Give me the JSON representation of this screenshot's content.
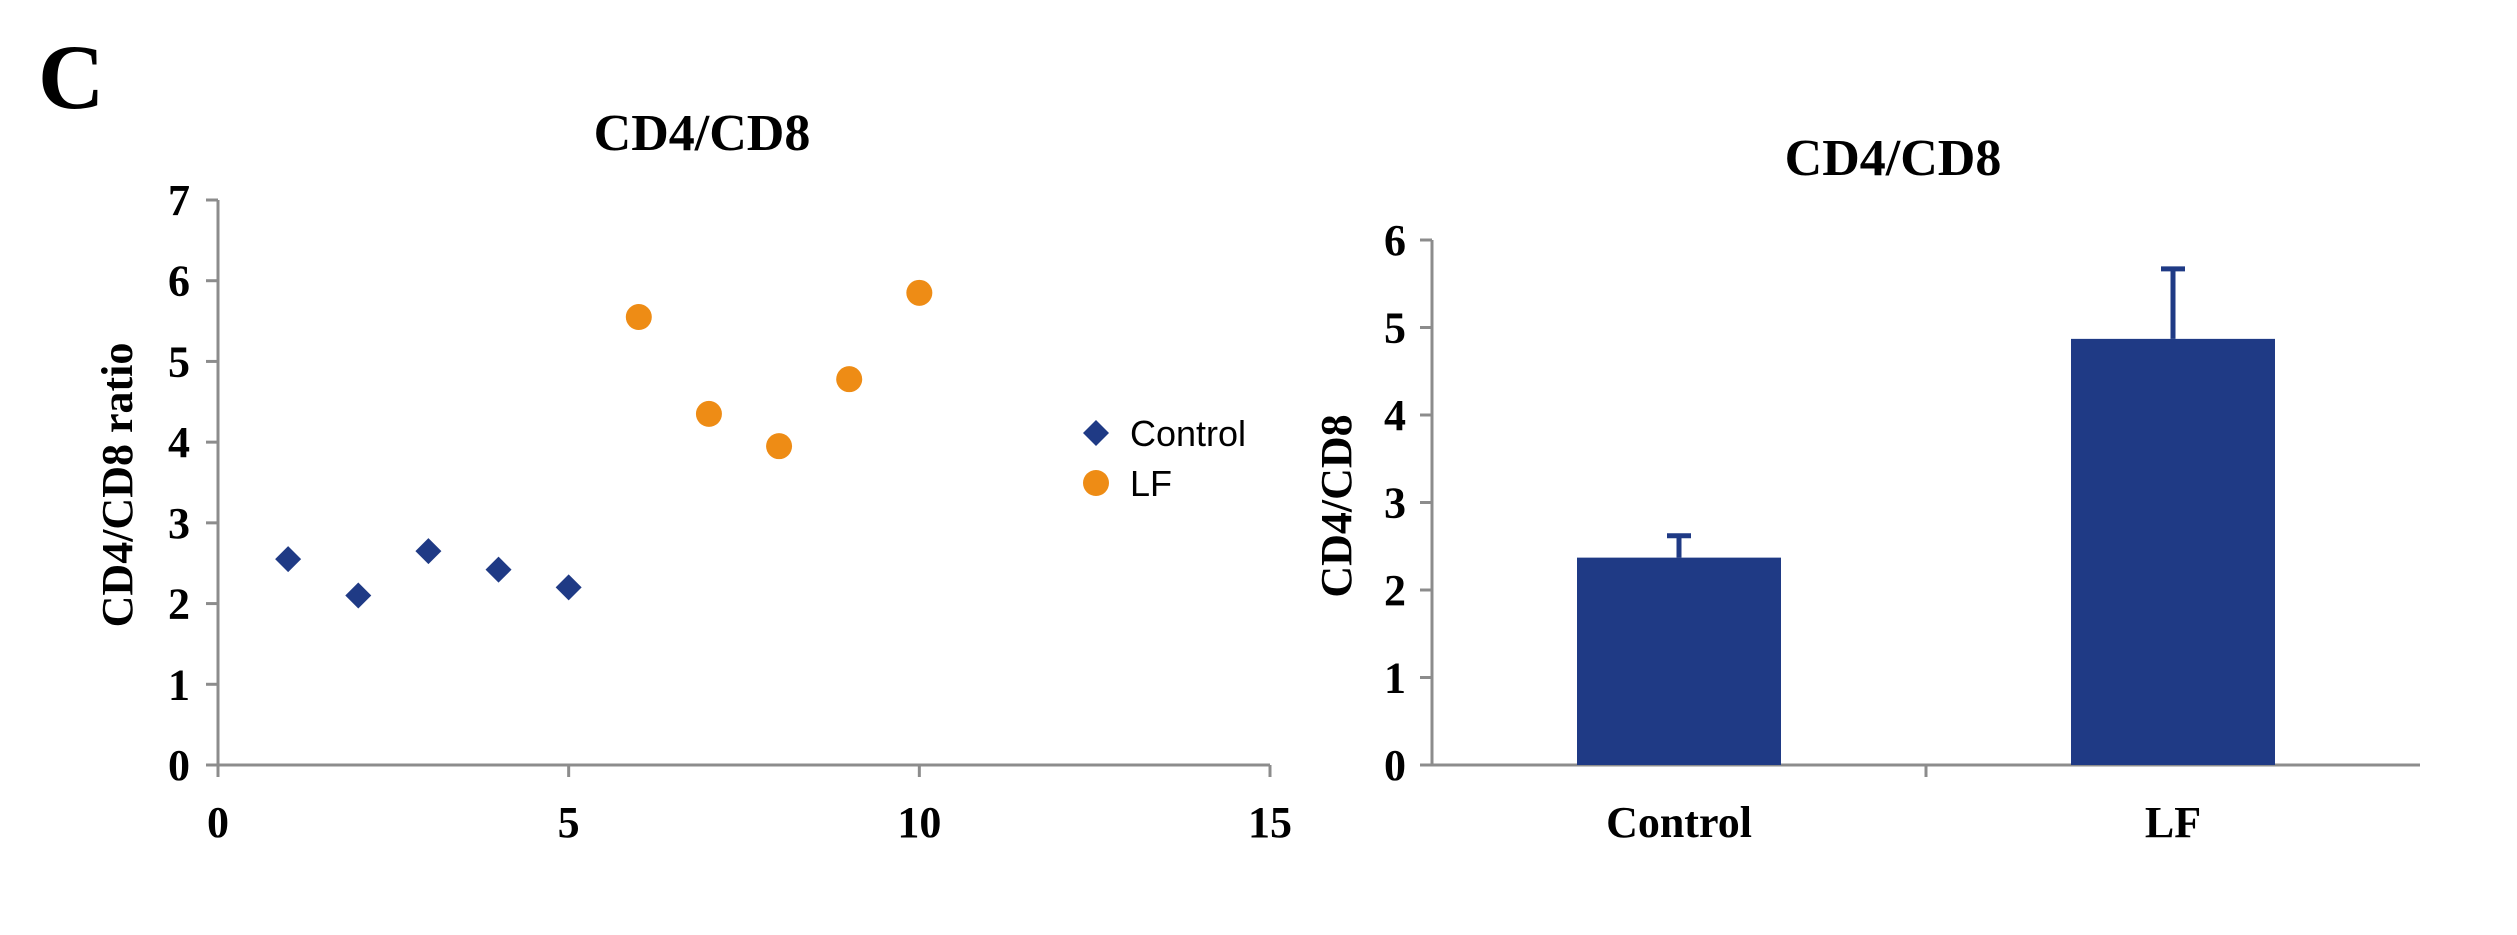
{
  "panel_label": "C",
  "colors": {
    "control": "#1F3A85",
    "lf": "#EE8C15",
    "axis": "#8C8C8C",
    "text": "#000000",
    "errorbar": "#1F3A85"
  },
  "chart_data": [
    {
      "type": "scatter",
      "title": "CD4/CD8",
      "xlabel": "",
      "ylabel": "CD4/CD8 ratio",
      "xlim": [
        0,
        15
      ],
      "ylim": [
        0,
        7
      ],
      "xticks": [
        0,
        5,
        10,
        15
      ],
      "yticks": [
        0,
        1,
        2,
        3,
        4,
        5,
        6,
        7
      ],
      "grid": false,
      "legend_position": "right",
      "series": [
        {
          "name": "Control",
          "marker": "diamond",
          "points": [
            {
              "x": 1,
              "y": 2.55
            },
            {
              "x": 2,
              "y": 2.1
            },
            {
              "x": 3,
              "y": 2.65
            },
            {
              "x": 4,
              "y": 2.42
            },
            {
              "x": 5,
              "y": 2.2
            }
          ]
        },
        {
          "name": "LF",
          "marker": "circle",
          "points": [
            {
              "x": 6,
              "y": 5.55
            },
            {
              "x": 7,
              "y": 4.35
            },
            {
              "x": 8,
              "y": 3.95
            },
            {
              "x": 9,
              "y": 4.78
            },
            {
              "x": 10,
              "y": 5.85
            }
          ]
        }
      ]
    },
    {
      "type": "bar",
      "title": "CD4/CD8",
      "xlabel": "",
      "ylabel": "CD4/CD8",
      "categories": [
        "Control",
        "LF"
      ],
      "values": [
        2.37,
        4.87
      ],
      "errors": [
        0.25,
        0.8
      ],
      "ylim": [
        0,
        6
      ],
      "yticks": [
        0,
        1,
        2,
        3,
        4,
        5,
        6
      ],
      "grid": false
    }
  ]
}
